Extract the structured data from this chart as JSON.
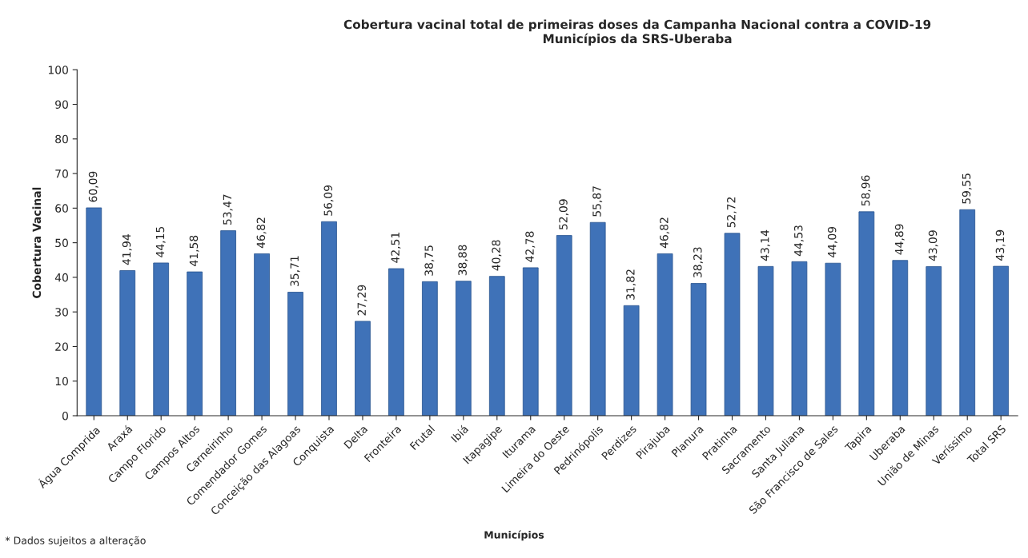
{
  "chart_data": {
    "type": "bar",
    "title": "Cobertura vacinal total de primeiras doses da Campanha Nacional contra a COVID-19\nMunicípios da SRS-Uberaba",
    "xlabel": "Municípios",
    "ylabel": "Cobertura Vacinal",
    "categories": [
      "Água Comprida",
      "Araxá",
      "Campo Florido",
      "Campos Altos",
      "Carneirinho",
      "Comendador Gomes",
      "Conceição das Alagoas",
      "Conquista",
      "Delta",
      "Fronteira",
      "Frutal",
      "Ibiá",
      "Itapagipe",
      "Iturama",
      "Limeira do Oeste",
      "Pedrinópolis",
      "Perdizes",
      "Pirajuba",
      "Planura",
      "Pratinha",
      "Sacramento",
      "Santa Juliana",
      "São Francisco de Sales",
      "Tapira",
      "Uberaba",
      "União de Minas",
      "Veríssimo",
      "Total SRS"
    ],
    "values": [
      60.09,
      41.94,
      44.15,
      41.58,
      53.47,
      46.82,
      35.71,
      56.09,
      27.29,
      42.51,
      38.75,
      38.88,
      40.28,
      42.78,
      52.09,
      55.87,
      31.82,
      46.82,
      38.23,
      52.72,
      43.14,
      44.53,
      44.09,
      58.96,
      44.89,
      43.09,
      59.55,
      43.19
    ],
    "value_labels": [
      "60,09",
      "41,94",
      "44,15",
      "41,58",
      "53,47",
      "46,82",
      "35,71",
      "56,09",
      "27,29",
      "42,51",
      "38,75",
      "38,88",
      "40,28",
      "42,78",
      "52,09",
      "55,87",
      "31,82",
      "46,82",
      "38,23",
      "52,72",
      "43,14",
      "44,53",
      "44,09",
      "58,96",
      "44,89",
      "43,09",
      "59,55",
      "43,19"
    ],
    "color": "#3f72b8",
    "ylim": [
      0,
      100
    ],
    "yticks": [
      0,
      10,
      20,
      30,
      40,
      50,
      60,
      70,
      80,
      90,
      100
    ],
    "grid": false,
    "legend": false,
    "annotations": [
      "* Dados sujeitos a alteração"
    ]
  }
}
